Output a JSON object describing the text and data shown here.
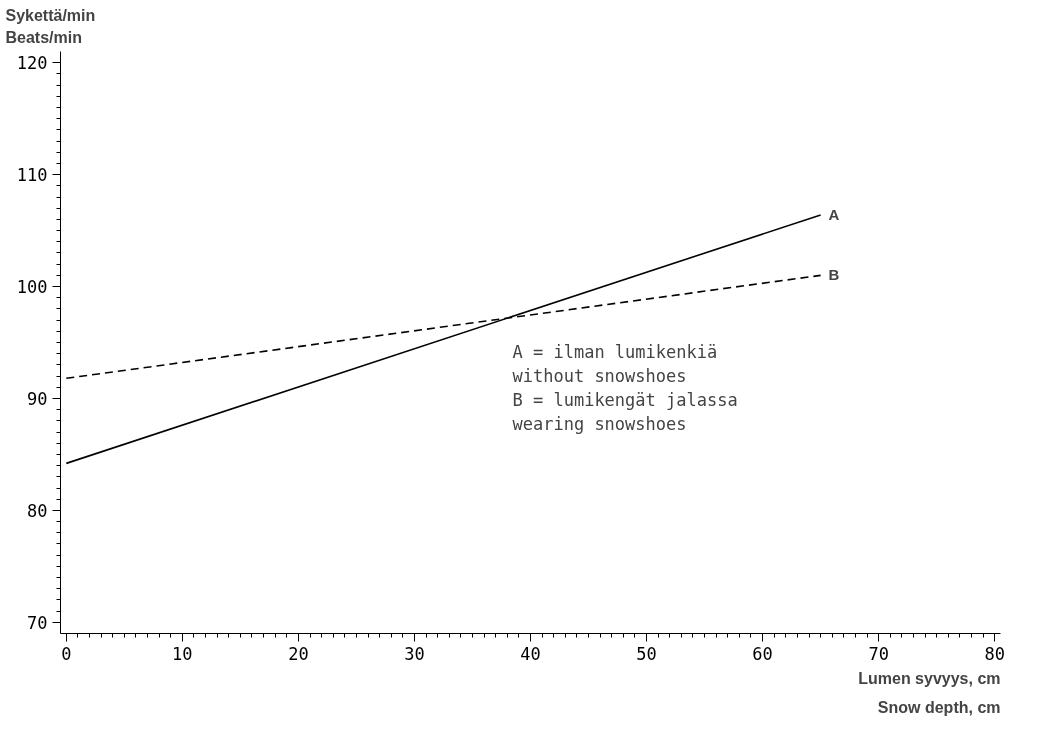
{
  "chart_data": {
    "type": "line",
    "ylabel": "Sykettä/min\nBeats/min",
    "xlabel": "Lumen syvyys, cm\nSnow depth, cm",
    "xlim": [
      -0.5,
      80.5
    ],
    "xticks": [
      0,
      10,
      20,
      30,
      40,
      50,
      60,
      70,
      80
    ],
    "ylim": [
      69,
      121
    ],
    "yticks": [
      70,
      80,
      90,
      100,
      110,
      120
    ],
    "x": [
      0,
      65
    ],
    "grid": false,
    "legend": false,
    "marker": "none",
    "series": [
      {
        "name": "A",
        "color": "#000000",
        "line_style": "solid",
        "values": [
          84.2,
          106.4
        ]
      },
      {
        "name": "B",
        "color": "#000000",
        "line_style": "dashed",
        "values": [
          91.8,
          101
        ]
      }
    ],
    "annotations": [
      "A = ilman lumikenkiä\n    without snowshoes\nB = lumikengät jalassa\n    wearing snowshoes"
    ]
  }
}
